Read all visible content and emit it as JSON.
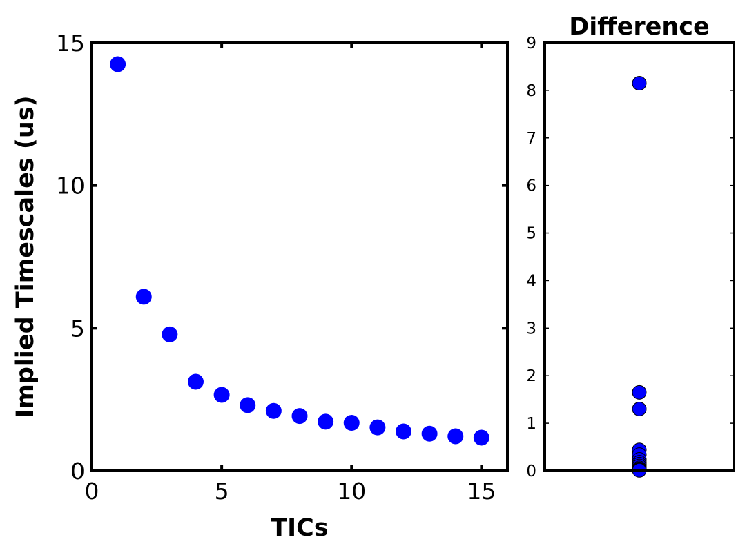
{
  "chart_data": [
    {
      "type": "scatter",
      "xlabel": "TICs",
      "ylabel": "Implied Timescales (us)",
      "xlim": [
        0,
        16
      ],
      "ylim": [
        0,
        15
      ],
      "xticks": [
        0,
        5,
        10,
        15
      ],
      "yticks": [
        0,
        5,
        10,
        15
      ],
      "xtick_labels": [
        "0",
        "5",
        "10",
        "15"
      ],
      "ytick_labels": [
        "0",
        "5",
        "10",
        "15"
      ],
      "grid": false,
      "marker_color": "#0000ff",
      "series": [
        {
          "x": [
            1,
            2,
            3,
            4,
            5,
            6,
            7,
            8,
            9,
            10,
            11,
            12,
            13,
            14,
            15
          ],
          "y": [
            14.25,
            6.1,
            4.78,
            3.12,
            2.66,
            2.3,
            2.1,
            1.92,
            1.72,
            1.68,
            1.52,
            1.38,
            1.3,
            1.21,
            1.16
          ]
        }
      ]
    },
    {
      "type": "scatter",
      "title": "Difference",
      "ylim": [
        0,
        9
      ],
      "yticks": [
        0,
        1,
        2,
        3,
        4,
        5,
        6,
        7,
        8,
        9
      ],
      "ytick_labels": [
        "0",
        "1",
        "2",
        "3",
        "4",
        "5",
        "6",
        "7",
        "8",
        "9"
      ],
      "grid": false,
      "marker_color": "#0000ff",
      "series": [
        {
          "y": [
            8.15,
            1.65,
            1.3,
            0.44,
            0.34,
            0.24,
            0.18,
            0.14,
            0.1,
            0.06,
            0.04,
            0.03,
            0.02,
            0.01
          ]
        }
      ]
    }
  ]
}
